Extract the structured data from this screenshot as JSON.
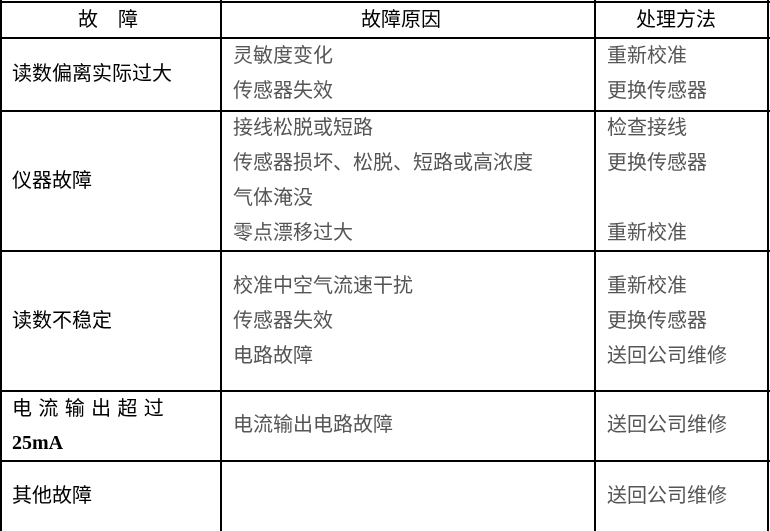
{
  "header": {
    "fault": "故　障",
    "cause": "故障原因",
    "solution": "处理方法"
  },
  "rows": [
    {
      "fault": "读数偏离实际过大",
      "causes": [
        "灵敏度变化",
        "传感器失效"
      ],
      "solutions": [
        "重新校准",
        "更换传感器"
      ]
    },
    {
      "fault": "仪器故障",
      "causes": [
        "接线松脱或短路",
        "传感器损坏、松脱、短路或高浓度",
        "气体淹没",
        "零点漂移过大"
      ],
      "solutions": [
        "检查接线",
        "更换传感器",
        "重新校准"
      ]
    },
    {
      "fault": "读数不稳定",
      "causes": [
        "校准中空气流速干扰",
        "传感器失效",
        "电路故障"
      ],
      "solutions": [
        "重新校准",
        "更换传感器",
        "送回公司维修"
      ]
    },
    {
      "fault_line1": "电 流 输 出 超 过",
      "fault_line2": "25mA",
      "causes": [
        "电流输出电路故障"
      ],
      "solutions": [
        "送回公司维修"
      ]
    },
    {
      "fault": "其他故障",
      "solutions": [
        "送回公司维修"
      ]
    }
  ]
}
